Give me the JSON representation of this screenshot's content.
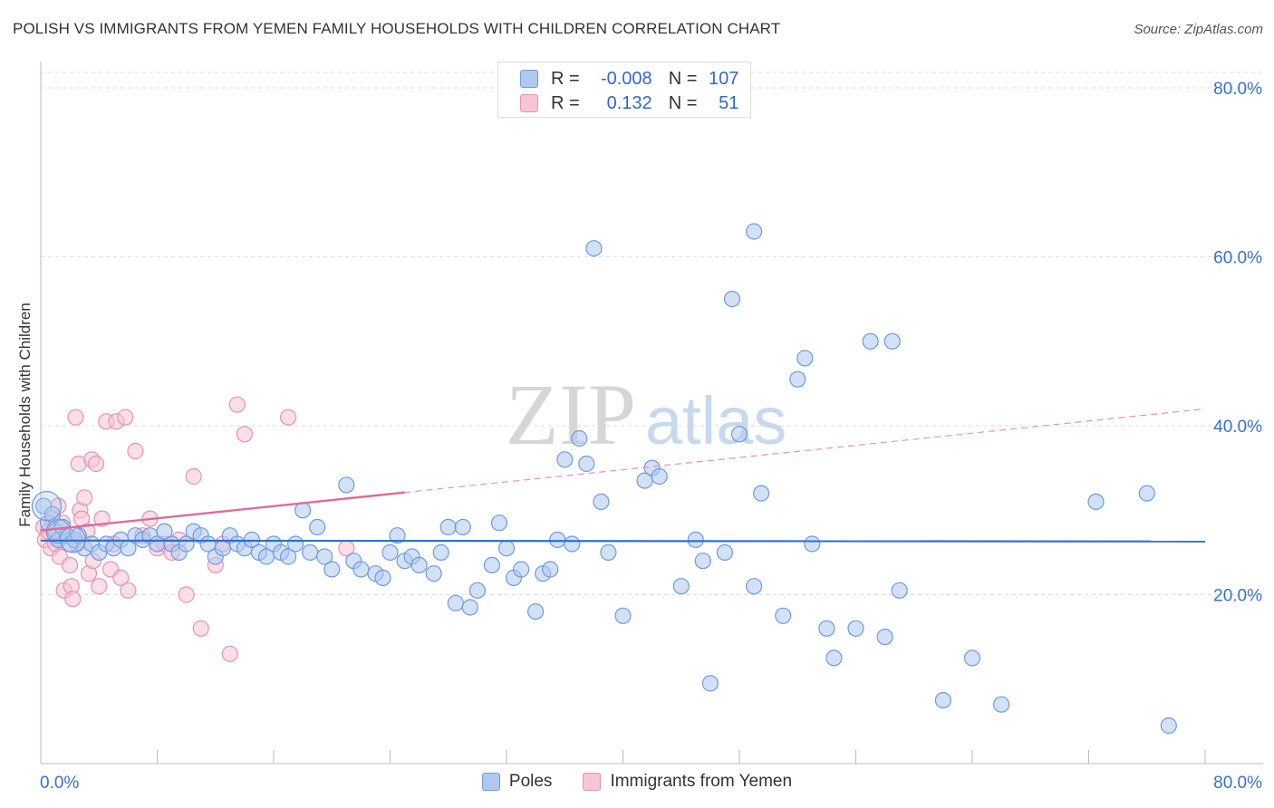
{
  "title": "POLISH VS IMMIGRANTS FROM YEMEN FAMILY HOUSEHOLDS WITH CHILDREN CORRELATION CHART",
  "source": "Source: ZipAtlas.com",
  "watermark": {
    "zip": "ZIP",
    "atlas": "atlas"
  },
  "colors": {
    "poles": "#6d9be0",
    "poles_fill": "#aec8ef",
    "yemen": "#e991b0",
    "yemen_fill": "#f6c5d6",
    "blue_text": "#3a6fcf",
    "grid": "#dddddd"
  },
  "stats": {
    "poles": {
      "r_label": "R =",
      "r_value": "-0.008",
      "n_label": "N =",
      "n_value": "107"
    },
    "yemen": {
      "r_label": "R =",
      "r_value": "0.132",
      "n_label": "N =",
      "n_value": "51"
    }
  },
  "legend": {
    "poles": "Poles",
    "yemen": "Immigrants from Yemen"
  },
  "chart_data": {
    "type": "scatter",
    "title": "POLISH VS IMMIGRANTS FROM YEMEN FAMILY HOUSEHOLDS WITH CHILDREN CORRELATION CHART",
    "xlabel": "",
    "ylabel": "Family Households with Children",
    "xlim": [
      0,
      80
    ],
    "ylim": [
      0,
      80
    ],
    "x_tick_labels": [
      "0.0%",
      "80.0%"
    ],
    "y_tick_labels": [
      "20.0%",
      "40.0%",
      "60.0%",
      "80.0%"
    ],
    "y_ticks": [
      20,
      40,
      60,
      80
    ],
    "series": [
      {
        "name": "Poles",
        "trend": {
          "x": [
            0,
            80
          ],
          "y": [
            26.4,
            26.3
          ],
          "style": "solid"
        },
        "points": [
          [
            0.2,
            30.5
          ],
          [
            0.5,
            28.5
          ],
          [
            0.8,
            29.5
          ],
          [
            1.0,
            27.5
          ],
          [
            1.2,
            26.5
          ],
          [
            1.5,
            28.0
          ],
          [
            1.8,
            27.0
          ],
          [
            2.0,
            26.0
          ],
          [
            2.3,
            26.5
          ],
          [
            2.6,
            27.0
          ],
          [
            3.0,
            25.5
          ],
          [
            3.5,
            26.0
          ],
          [
            4.0,
            25.0
          ],
          [
            4.5,
            26.0
          ],
          [
            5.0,
            25.5
          ],
          [
            5.5,
            26.5
          ],
          [
            6.0,
            25.5
          ],
          [
            6.5,
            27.0
          ],
          [
            7.0,
            26.5
          ],
          [
            7.5,
            27.0
          ],
          [
            8.0,
            26.0
          ],
          [
            8.5,
            27.5
          ],
          [
            9.0,
            26.0
          ],
          [
            9.5,
            25.0
          ],
          [
            10.0,
            26.0
          ],
          [
            10.5,
            27.5
          ],
          [
            11.0,
            27.0
          ],
          [
            11.5,
            26.0
          ],
          [
            12.0,
            24.5
          ],
          [
            12.5,
            25.5
          ],
          [
            13.0,
            27.0
          ],
          [
            13.5,
            26.0
          ],
          [
            14.0,
            25.5
          ],
          [
            14.5,
            26.5
          ],
          [
            15.0,
            25.0
          ],
          [
            15.5,
            24.5
          ],
          [
            16.0,
            26.0
          ],
          [
            16.5,
            25.0
          ],
          [
            17.0,
            24.5
          ],
          [
            17.5,
            26.0
          ],
          [
            18.0,
            30.0
          ],
          [
            18.5,
            25.0
          ],
          [
            19.0,
            28.0
          ],
          [
            19.5,
            24.5
          ],
          [
            20.0,
            23.0
          ],
          [
            21.0,
            33.0
          ],
          [
            21.5,
            24.0
          ],
          [
            22.0,
            23.0
          ],
          [
            23.0,
            22.5
          ],
          [
            23.5,
            22.0
          ],
          [
            24.0,
            25.0
          ],
          [
            24.5,
            27.0
          ],
          [
            25.0,
            24.0
          ],
          [
            25.5,
            24.5
          ],
          [
            26.0,
            23.5
          ],
          [
            27.0,
            22.5
          ],
          [
            27.5,
            25.0
          ],
          [
            28.0,
            28.0
          ],
          [
            28.5,
            19.0
          ],
          [
            29.0,
            28.0
          ],
          [
            29.5,
            18.5
          ],
          [
            30.0,
            20.5
          ],
          [
            31.0,
            23.5
          ],
          [
            31.5,
            28.5
          ],
          [
            32.0,
            25.5
          ],
          [
            32.5,
            22.0
          ],
          [
            33.0,
            23.0
          ],
          [
            34.0,
            18.0
          ],
          [
            34.5,
            22.5
          ],
          [
            35.0,
            23.0
          ],
          [
            35.5,
            26.5
          ],
          [
            36.0,
            36.0
          ],
          [
            36.5,
            26.0
          ],
          [
            37.0,
            38.5
          ],
          [
            37.5,
            35.5
          ],
          [
            38.0,
            61.0
          ],
          [
            38.5,
            31.0
          ],
          [
            39.0,
            25.0
          ],
          [
            40.0,
            17.5
          ],
          [
            41.5,
            33.5
          ],
          [
            42.0,
            35.0
          ],
          [
            42.5,
            34.0
          ],
          [
            44.0,
            21.0
          ],
          [
            45.0,
            26.5
          ],
          [
            45.5,
            24.0
          ],
          [
            46.0,
            9.5
          ],
          [
            47.0,
            25.0
          ],
          [
            47.5,
            55.0
          ],
          [
            48.0,
            39.0
          ],
          [
            49.0,
            63.0
          ],
          [
            49.5,
            32.0
          ],
          [
            49.0,
            21.0
          ],
          [
            51.0,
            17.5
          ],
          [
            52.0,
            45.5
          ],
          [
            52.5,
            48.0
          ],
          [
            53.0,
            26.0
          ],
          [
            54.0,
            16.0
          ],
          [
            54.5,
            12.5
          ],
          [
            56.0,
            16.0
          ],
          [
            57.0,
            50.0
          ],
          [
            58.0,
            15.0
          ],
          [
            58.5,
            50.0
          ],
          [
            59.0,
            20.5
          ],
          [
            62.0,
            7.5
          ],
          [
            64.0,
            12.5
          ],
          [
            66.0,
            7.0
          ],
          [
            72.5,
            31.0
          ],
          [
            76.0,
            32.0
          ],
          [
            77.5,
            4.5
          ]
        ]
      },
      {
        "name": "Immigrants from Yemen",
        "trend": {
          "x": [
            0,
            25
          ],
          "y": [
            27.6,
            32.1
          ],
          "style": "solid",
          "extended_x": [
            25,
            80
          ],
          "extended_y": [
            32.1,
            42.0
          ],
          "extended_style": "dashed"
        },
        "points": [
          [
            0.2,
            28.0
          ],
          [
            0.3,
            26.5
          ],
          [
            0.5,
            27.5
          ],
          [
            0.7,
            25.5
          ],
          [
            0.8,
            29.0
          ],
          [
            1.0,
            26.0
          ],
          [
            1.2,
            30.5
          ],
          [
            1.3,
            24.5
          ],
          [
            1.5,
            28.5
          ],
          [
            1.6,
            20.5
          ],
          [
            1.8,
            27.0
          ],
          [
            2.0,
            23.5
          ],
          [
            2.1,
            21.0
          ],
          [
            2.2,
            19.5
          ],
          [
            2.4,
            41.0
          ],
          [
            2.5,
            26.0
          ],
          [
            2.6,
            35.5
          ],
          [
            2.7,
            30.0
          ],
          [
            2.8,
            29.0
          ],
          [
            3.0,
            31.5
          ],
          [
            3.2,
            27.5
          ],
          [
            3.3,
            22.5
          ],
          [
            3.5,
            36.0
          ],
          [
            3.6,
            24.0
          ],
          [
            3.8,
            35.5
          ],
          [
            4.0,
            21.0
          ],
          [
            4.2,
            29.0
          ],
          [
            4.5,
            40.5
          ],
          [
            4.8,
            23.0
          ],
          [
            5.0,
            26.0
          ],
          [
            5.2,
            40.5
          ],
          [
            5.5,
            22.0
          ],
          [
            5.8,
            41.0
          ],
          [
            6.0,
            20.5
          ],
          [
            6.5,
            37.0
          ],
          [
            7.0,
            27.0
          ],
          [
            7.5,
            29.0
          ],
          [
            8.0,
            25.5
          ],
          [
            8.5,
            26.0
          ],
          [
            9.0,
            25.0
          ],
          [
            9.5,
            26.5
          ],
          [
            10.0,
            20.0
          ],
          [
            10.5,
            34.0
          ],
          [
            11.0,
            16.0
          ],
          [
            12.0,
            23.5
          ],
          [
            12.5,
            26.0
          ],
          [
            13.0,
            13.0
          ],
          [
            13.5,
            42.5
          ],
          [
            14.0,
            39.0
          ],
          [
            17.0,
            41.0
          ],
          [
            21.0,
            25.5
          ]
        ]
      }
    ]
  }
}
